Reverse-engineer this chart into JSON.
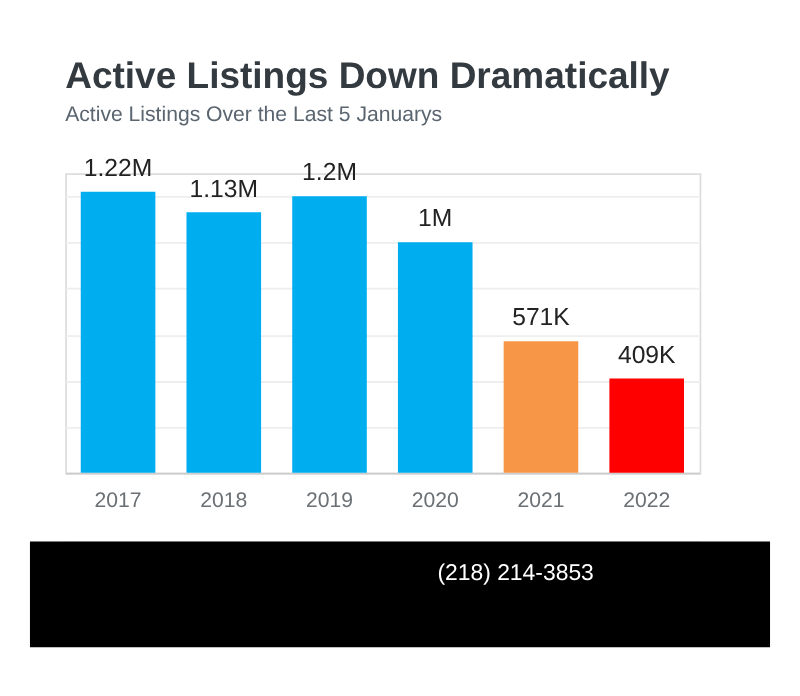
{
  "chart_data": {
    "type": "bar",
    "title": "Active Listings Down Dramatically",
    "subtitle": "Active Listings Over the Last 5 Januarys",
    "categories": [
      "2017",
      "2018",
      "2019",
      "2020",
      "2021",
      "2022"
    ],
    "values": [
      1220000,
      1130000,
      1200000,
      1000000,
      571000,
      409000
    ],
    "colors": [
      "#00aeef",
      "#00aeef",
      "#00aeef",
      "#00aeef",
      "#f79646",
      "#ff0000"
    ],
    "value_labels": [
      "1.22M",
      "1.13M",
      "1.2M",
      "1M",
      "571K",
      "409K"
    ],
    "tick_labels": "x",
    "grid": "y",
    "annotations": [
      "(218) 214-3853"
    ]
  }
}
